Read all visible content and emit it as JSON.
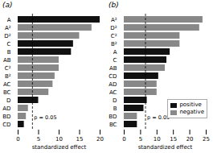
{
  "chart_data": [
    {
      "type": "bar",
      "orientation": "horizontal",
      "title": "(a)",
      "categories": [
        "A",
        "A²",
        "D²",
        "C",
        "B",
        "AB",
        "C²",
        "B²",
        "AC",
        "BC",
        "D",
        "AD",
        "BD",
        "CD"
      ],
      "values": [
        20,
        18,
        15,
        13.5,
        13,
        10,
        10,
        9,
        8.5,
        7.5,
        5,
        2.5,
        2,
        1.5
      ],
      "colors": [
        "#111111",
        "#888888",
        "#888888",
        "#111111",
        "#111111",
        "#888888",
        "#888888",
        "#888888",
        "#888888",
        "#888888",
        "#111111",
        "#888888",
        "#888888",
        "#111111"
      ],
      "threshold": 3.5,
      "annotation": "p = 0.05",
      "xlim": [
        0,
        20
      ],
      "xticks": [
        0,
        5,
        10,
        15,
        20
      ],
      "xlabel": "standardized effect",
      "grid": false
    },
    {
      "type": "bar",
      "orientation": "horizontal",
      "title": "(b)",
      "categories": [
        "A²",
        "D²",
        "C²",
        "B²",
        "A",
        "C",
        "AB",
        "CD",
        "AD",
        "AC",
        "D",
        "B",
        "BD",
        "BC"
      ],
      "values": [
        24,
        23,
        17,
        17,
        14,
        13,
        12.5,
        10.5,
        10,
        10,
        7,
        6,
        4,
        4
      ],
      "colors": [
        "#888888",
        "#888888",
        "#888888",
        "#888888",
        "#111111",
        "#111111",
        "#888888",
        "#111111",
        "#888888",
        "#888888",
        "#111111",
        "#111111",
        "#888888",
        "#111111"
      ],
      "threshold": 6.5,
      "annotation": "p = 0.05",
      "xlim": [
        0,
        25
      ],
      "xticks": [
        0,
        5,
        10,
        15,
        20,
        25
      ],
      "xlabel": "standardized effect",
      "grid": false,
      "legend": "lower right",
      "legend_items": [
        {
          "name": "positive",
          "color": "#111111"
        },
        {
          "name": "negative",
          "color": "#888888"
        }
      ]
    }
  ]
}
